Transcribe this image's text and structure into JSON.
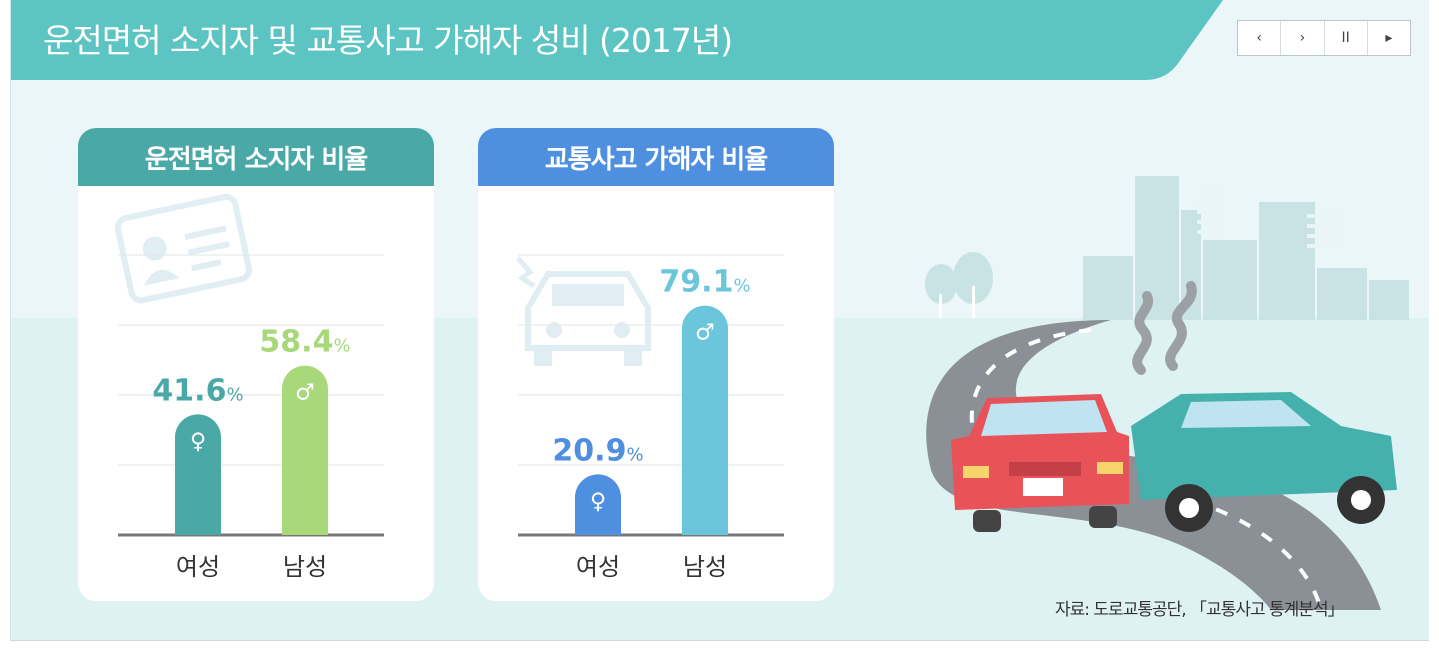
{
  "title": "운전면허 소지자 및 교통사고 가해자 성비 (2017년)",
  "controls": [
    {
      "name": "prev",
      "glyph": "‹"
    },
    {
      "name": "next",
      "glyph": "›"
    },
    {
      "name": "pause",
      "glyph": "II"
    },
    {
      "name": "play",
      "glyph": "▸"
    }
  ],
  "colors": {
    "title_bar": "#5cc4c2",
    "card1_head": "#4aa8a6",
    "card2_head": "#4f8fe0",
    "female1": "#4aa8a6",
    "male1": "#a7d97a",
    "female2": "#4f8fe0",
    "male2": "#6bc6dc"
  },
  "source": "자료: 도로교통공단, 「교통사고 통계분석」",
  "chart_data": [
    {
      "type": "bar",
      "title": "운전면허 소지자 비율",
      "categories": [
        "여성",
        "남성"
      ],
      "values": [
        41.6,
        58.4
      ],
      "labels": [
        "41.6",
        "58.4"
      ],
      "unit": "%",
      "symbols": [
        "♀",
        "♂"
      ],
      "ylim": [
        0,
        100
      ],
      "grid": true
    },
    {
      "type": "bar",
      "title": "교통사고 가해자 비율",
      "categories": [
        "여성",
        "남성"
      ],
      "values": [
        20.9,
        79.1
      ],
      "labels": [
        "20.9",
        "79.1"
      ],
      "unit": "%",
      "symbols": [
        "♀",
        "♂"
      ],
      "ylim": [
        0,
        100
      ],
      "grid": true
    }
  ]
}
